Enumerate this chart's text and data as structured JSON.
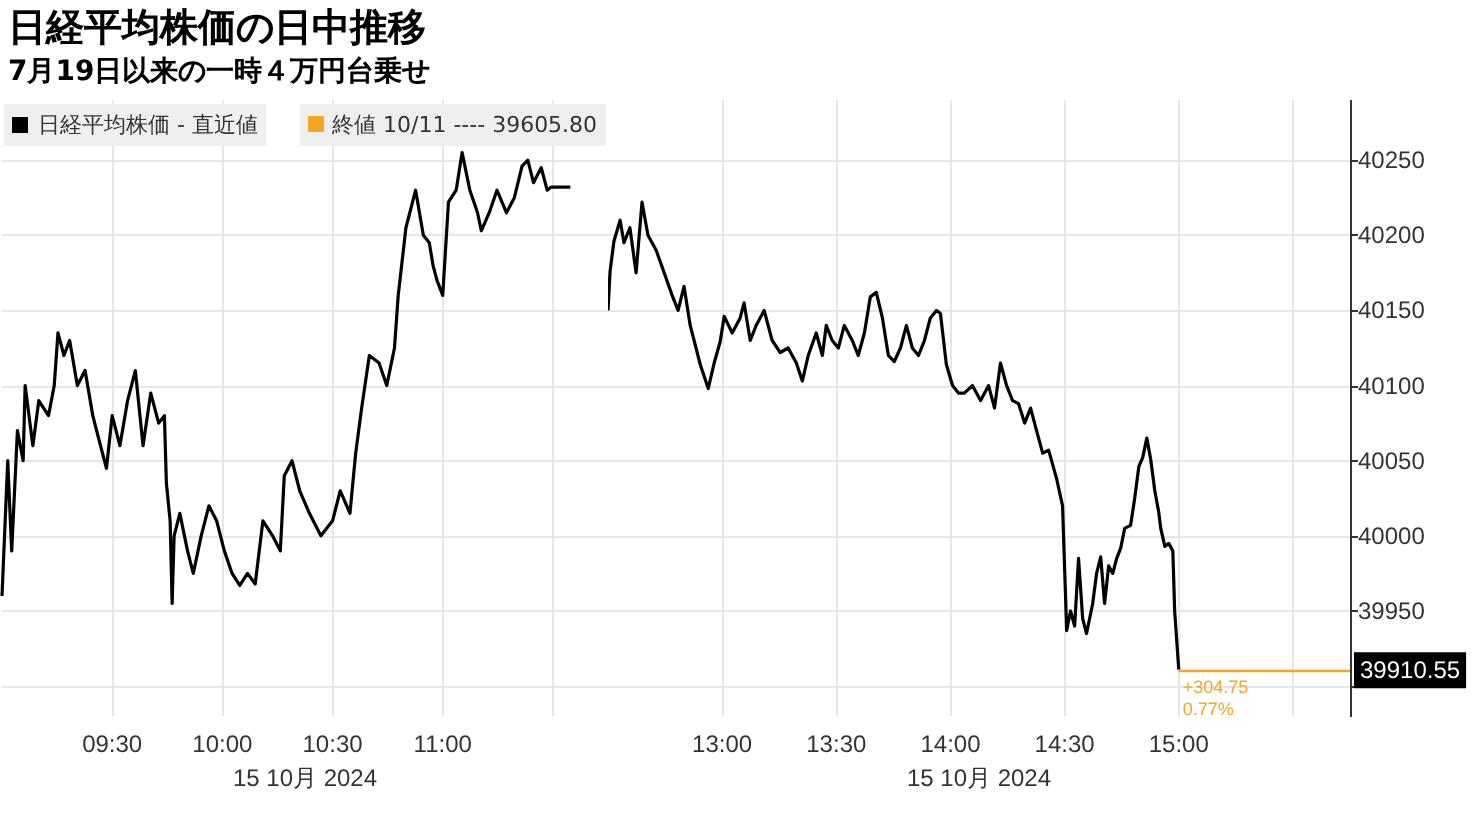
{
  "chart_data": [
    {
      "type": "line",
      "title": "日経平均株価の日中推移",
      "subtitle": "7月19日以来の一時４万円台乗せ",
      "xlabel": "15 10月 2024",
      "legend": "top left",
      "grid": true,
      "tick_labels": "x",
      "annotations": [
        "終値 10/11 ---- 39605.80"
      ],
      "xlim": [
        9.0,
        11.75
      ],
      "xticks": [
        {
          "value": 9.5,
          "label": "09:30"
        },
        {
          "value": 10,
          "label": "10:00"
        },
        {
          "value": 10.5,
          "label": "10:30"
        },
        {
          "value": 11,
          "label": "11:00"
        },
        {
          "value": 11.5,
          "label": null
        }
      ],
      "ylim": [
        39880,
        40290
      ],
      "yticks": [
        39900,
        39950,
        40000,
        40050,
        40100,
        40150,
        40200,
        40250
      ],
      "series": [
        {
          "name": "日経平均株価 - 直近値",
          "color": "#000000",
          "x": [
            9.0,
            9.026,
            9.044,
            9.07,
            9.096,
            9.105,
            9.14,
            9.167,
            9.211,
            9.237,
            9.254,
            9.281,
            9.307,
            9.342,
            9.377,
            9.412,
            9.447,
            9.474,
            9.5,
            9.535,
            9.57,
            9.605,
            9.64,
            9.675,
            9.711,
            9.737,
            9.746,
            9.763,
            9.772,
            9.781,
            9.807,
            9.842,
            9.868,
            9.904,
            9.939,
            9.974,
            10.009,
            10.044,
            10.079,
            10.114,
            10.149,
            10.184,
            10.228,
            10.263,
            10.281,
            10.316,
            10.351,
            10.395,
            10.447,
            10.5,
            10.535,
            10.579,
            10.605,
            10.632,
            10.667,
            10.711,
            10.746,
            10.781,
            10.798,
            10.833,
            10.877,
            10.912,
            10.939,
            10.956,
            10.974,
            11.0,
            11.026,
            11.061,
            11.088,
            11.123,
            11.158,
            11.175,
            11.211,
            11.246,
            11.289,
            11.325,
            11.36,
            11.386,
            11.412,
            11.447,
            11.474,
            11.491,
            11.579
          ],
          "values": [
            39960,
            40050,
            39990,
            40070,
            40050,
            40100,
            40060,
            40090,
            40080,
            40100,
            40135,
            40120,
            40130,
            40100,
            40110,
            40080,
            40060,
            40045,
            40080,
            40060,
            40090,
            40110,
            40060,
            40095,
            40075,
            40080,
            40035,
            40010,
            39955,
            40000,
            40015,
            39990,
            39975,
            40000,
            40020,
            40010,
            39990,
            39975,
            39967,
            39975,
            39968,
            40010,
            40000,
            39990,
            40040,
            40050,
            40030,
            40015,
            40000,
            40010,
            40030,
            40015,
            40055,
            40085,
            40120,
            40115,
            40100,
            40125,
            40160,
            40205,
            40230,
            40200,
            40195,
            40180,
            40170,
            40160,
            40222,
            40230,
            40255,
            40230,
            40215,
            40203,
            40215,
            40230,
            40215,
            40225,
            40246,
            40250,
            40235,
            40245,
            40230,
            40232,
            40232
          ]
        }
      ]
    },
    {
      "type": "line",
      "xlabel": "15 10月 2024",
      "grid": true,
      "annotations": [
        {
          "text": "+304.75",
          "x": 15.0,
          "y": 39910.55
        },
        {
          "text": "0.77%",
          "x": 15.0,
          "y": 39910.55
        }
      ],
      "ref_lines": [
        {
          "axis": "y",
          "value": 39910.55,
          "label": "39910.55",
          "color": "#f5a623"
        }
      ],
      "xlim": [
        12.5,
        15.75
      ],
      "xticks": [
        {
          "value": 13,
          "label": "13:00"
        },
        {
          "value": 13.5,
          "label": "13:30"
        },
        {
          "value": 14,
          "label": "14:00"
        },
        {
          "value": 14.5,
          "label": "14:30"
        },
        {
          "value": 15,
          "label": "15:00"
        },
        {
          "value": 15.5,
          "label": null
        }
      ],
      "ylim": [
        39880,
        40290
      ],
      "yticks": [
        {
          "value": 39900,
          "label": null
        },
        39950,
        40000,
        40050,
        40100,
        40150,
        40200,
        40250
      ],
      "series": [
        {
          "color": "#000000",
          "x": [
            12.5,
            12.509,
            12.526,
            12.553,
            12.57,
            12.596,
            12.623,
            12.649,
            12.675,
            12.711,
            12.746,
            12.781,
            12.807,
            12.833,
            12.86,
            12.877,
            12.904,
            12.939,
            12.965,
            12.991,
            13.009,
            13.044,
            13.079,
            13.096,
            13.123,
            13.149,
            13.184,
            13.219,
            13.254,
            13.289,
            13.325,
            13.351,
            13.377,
            13.412,
            13.439,
            13.456,
            13.482,
            13.509,
            13.535,
            13.57,
            13.596,
            13.623,
            13.649,
            13.675,
            13.702,
            13.728,
            13.754,
            13.781,
            13.807,
            13.833,
            13.86,
            13.886,
            13.912,
            13.939,
            13.956,
            13.982,
            14.009,
            14.035,
            14.061,
            14.096,
            14.132,
            14.167,
            14.193,
            14.219,
            14.246,
            14.272,
            14.298,
            14.325,
            14.351,
            14.377,
            14.404,
            14.43,
            14.465,
            14.491,
            14.509,
            14.526,
            14.544,
            14.561,
            14.579,
            14.596,
            14.623,
            14.64,
            14.658,
            14.675,
            14.693,
            14.711,
            14.728,
            14.746,
            14.763,
            14.789,
            14.807,
            14.825,
            14.842,
            14.86,
            14.877,
            14.895,
            14.912,
            14.921,
            14.939,
            14.956,
            14.974,
            14.982,
            15.0
          ],
          "values": [
            40150,
            40176,
            40196,
            40210,
            40195,
            40205,
            40175,
            40222,
            40200,
            40190,
            40175,
            40160,
            40150,
            40166,
            40140,
            40130,
            40114,
            40098,
            40115,
            40129,
            40146,
            40135,
            40145,
            40155,
            40130,
            40140,
            40150,
            40130,
            40122,
            40125,
            40115,
            40103,
            40120,
            40135,
            40120,
            40140,
            40130,
            40125,
            40140,
            40130,
            40120,
            40135,
            40159,
            40162,
            40145,
            40120,
            40116,
            40125,
            40140,
            40125,
            40120,
            40130,
            40145,
            40150,
            40148,
            40114,
            40100,
            40095,
            40095,
            40100,
            40090,
            40100,
            40085,
            40115,
            40100,
            40090,
            40088,
            40075,
            40085,
            40070,
            40055,
            40057,
            40038,
            40020,
            39937,
            39950,
            39940,
            39985,
            39945,
            39935,
            39955,
            39975,
            39986,
            39955,
            39980,
            39975,
            39985,
            39992,
            40005,
            40007,
            40025,
            40046,
            40052,
            40065,
            40051,
            40030,
            40016,
            40005,
            39993,
            39995,
            39990,
            39950,
            39911
          ]
        }
      ]
    }
  ]
}
